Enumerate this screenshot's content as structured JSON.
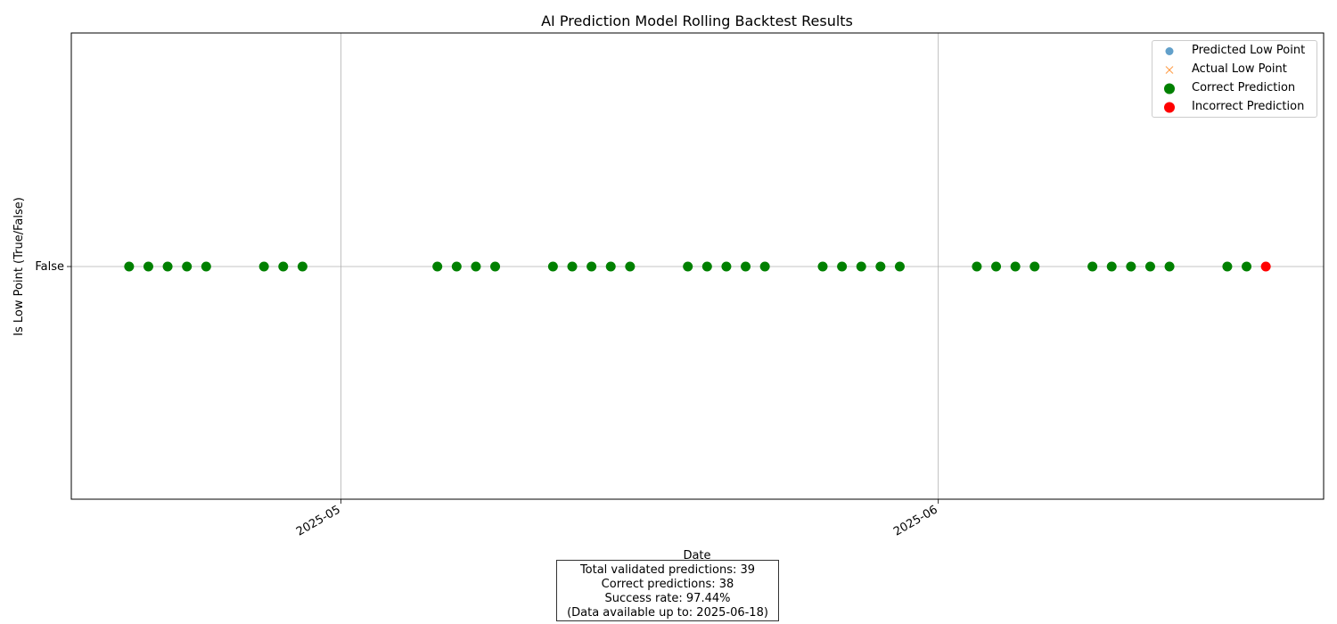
{
  "chart_data": {
    "type": "scatter",
    "title": "AI Prediction Model Rolling Backtest Results",
    "xlabel": "Date",
    "ylabel": "Is Low Point (True/False)",
    "x_ticks": [
      "2025-05",
      "2025-06"
    ],
    "x_tick_dates": [
      "2025-05-01",
      "2025-06-01"
    ],
    "xlim": [
      "2025-04-17",
      "2025-06-21"
    ],
    "y_ticks": [
      "False"
    ],
    "grid": true,
    "legend_position": "top-right",
    "series": [
      {
        "name": "Predicted Low Point",
        "marker": "circle",
        "color": "#1f77b4",
        "x": [],
        "y": []
      },
      {
        "name": "Actual Low Point",
        "marker": "x",
        "color": "#ff7f0e",
        "x": [],
        "y": []
      },
      {
        "name": "Correct Prediction",
        "marker": "circle",
        "color": "#008000",
        "x": [
          "2025-04-20",
          "2025-04-21",
          "2025-04-22",
          "2025-04-23",
          "2025-04-24",
          "2025-04-27",
          "2025-04-28",
          "2025-04-29",
          "2025-05-06",
          "2025-05-07",
          "2025-05-08",
          "2025-05-09",
          "2025-05-12",
          "2025-05-13",
          "2025-05-14",
          "2025-05-15",
          "2025-05-16",
          "2025-05-19",
          "2025-05-20",
          "2025-05-21",
          "2025-05-22",
          "2025-05-23",
          "2025-05-26",
          "2025-05-27",
          "2025-05-28",
          "2025-05-29",
          "2025-05-30",
          "2025-06-03",
          "2025-06-04",
          "2025-06-05",
          "2025-06-06",
          "2025-06-09",
          "2025-06-10",
          "2025-06-11",
          "2025-06-12",
          "2025-06-13",
          "2025-06-16",
          "2025-06-17"
        ],
        "y": [
          false,
          false,
          false,
          false,
          false,
          false,
          false,
          false,
          false,
          false,
          false,
          false,
          false,
          false,
          false,
          false,
          false,
          false,
          false,
          false,
          false,
          false,
          false,
          false,
          false,
          false,
          false,
          false,
          false,
          false,
          false,
          false,
          false,
          false,
          false,
          false,
          false,
          false
        ]
      },
      {
        "name": "Incorrect Prediction",
        "marker": "circle",
        "color": "#ff0000",
        "x": [
          "2025-06-18"
        ],
        "y": [
          false
        ]
      }
    ]
  },
  "stats": {
    "total": "Total validated predictions: 39",
    "correct": "Correct predictions: 38",
    "rate": "Success rate: 97.44%",
    "available": "(Data available up to: 2025-06-18)"
  }
}
